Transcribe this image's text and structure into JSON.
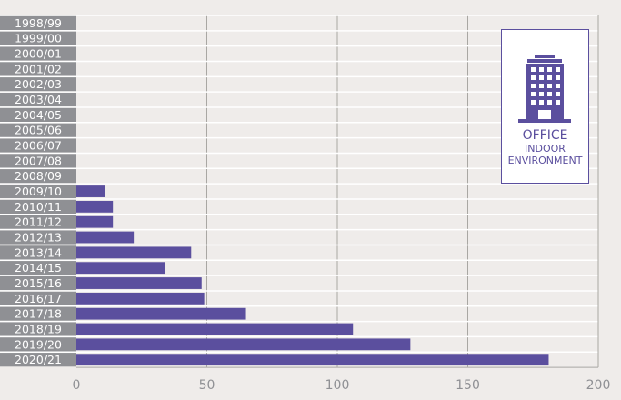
{
  "chart_data": {
    "type": "bar",
    "orientation": "horizontal",
    "categories": [
      "1998/99",
      "1999/00",
      "2000/01",
      "2001/02",
      "2002/03",
      "2003/04",
      "2004/05",
      "2005/06",
      "2006/07",
      "2007/08",
      "2008/09",
      "2009/10",
      "2010/11",
      "2011/12",
      "2012/13",
      "2013/14",
      "2014/15",
      "2015/16",
      "2016/17",
      "2017/18",
      "2018/19",
      "2019/20",
      "2020/21"
    ],
    "values": [
      0,
      0,
      0,
      0,
      0,
      0,
      0,
      0,
      0,
      0,
      0,
      11,
      14,
      14,
      22,
      44,
      34,
      48,
      49,
      65,
      106,
      128,
      181
    ],
    "xlim": [
      0,
      200
    ],
    "xticks": [
      0,
      50,
      100,
      150,
      200
    ],
    "grid": true,
    "bar_color": "#5b4f9e",
    "label_bg": "#8f9094"
  },
  "badge": {
    "icon": "office-building-icon",
    "line1": "OFFICE",
    "line2": "INDOOR",
    "line3": "ENVIRONMENT"
  }
}
